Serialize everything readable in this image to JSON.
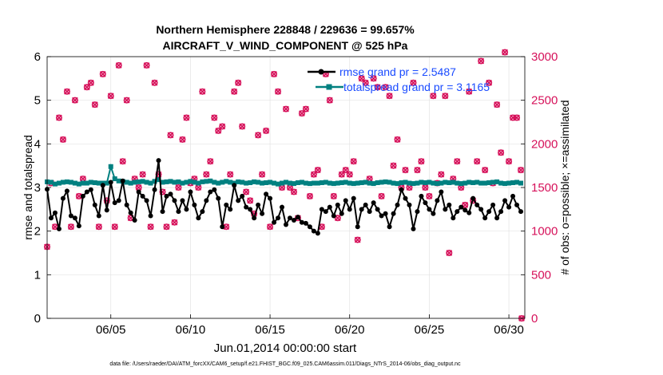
{
  "chart_data": {
    "type": "line",
    "title_line1": "Northern Hemisphere 228848 / 229636 = 99.657%",
    "title_line2": "AIRCRAFT_V_WIND_COMPONENT @ 525 hPa",
    "xlabel": "Jun.01,2014 00:00:00 start",
    "ylabel": "rmse and totalspread",
    "y2label": "# of obs: o=possible; ×=assimilated",
    "footnote": "data file: /Users/raeder/DAI/ATM_forcXX/CAM6_setup/f.e21.FHIST_BGC.f09_025.CAM6assim.011/Diags_NTrS_2014-06/obs_diag_output.nc",
    "xlim": [
      1.0,
      31.0
    ],
    "ylim": [
      0,
      6
    ],
    "y2lim": [
      0,
      3000
    ],
    "xticks": [
      5,
      10,
      15,
      20,
      25,
      30
    ],
    "xtick_labels": [
      "06/05",
      "06/10",
      "06/15",
      "06/20",
      "06/25",
      "06/30"
    ],
    "yticks": [
      0,
      1,
      2,
      3,
      4,
      5,
      6
    ],
    "ytick_labels": [
      "0",
      "1",
      "2",
      "3",
      "4",
      "5",
      "6"
    ],
    "y2ticks": [
      0,
      500,
      1000,
      1500,
      2000,
      2500,
      3000
    ],
    "y2tick_labels": [
      "0",
      "500",
      "1000",
      "1500",
      "2000",
      "2500",
      "3000"
    ],
    "grid": true,
    "legend_position": "top-right",
    "x": [
      1.0,
      1.25,
      1.5,
      1.75,
      2.0,
      2.25,
      2.5,
      2.75,
      3.0,
      3.25,
      3.5,
      3.75,
      4.0,
      4.25,
      4.5,
      4.75,
      5.0,
      5.25,
      5.5,
      5.75,
      6.0,
      6.25,
      6.5,
      6.75,
      7.0,
      7.25,
      7.5,
      7.75,
      8.0,
      8.25,
      8.5,
      8.75,
      9.0,
      9.25,
      9.5,
      9.75,
      10.0,
      10.25,
      10.5,
      10.75,
      11.0,
      11.25,
      11.5,
      11.75,
      12.0,
      12.25,
      12.5,
      12.75,
      13.0,
      13.25,
      13.5,
      13.75,
      14.0,
      14.25,
      14.5,
      14.75,
      15.0,
      15.25,
      15.5,
      15.75,
      16.0,
      16.25,
      16.5,
      16.75,
      17.0,
      17.25,
      17.5,
      17.75,
      18.0,
      18.25,
      18.5,
      18.75,
      19.0,
      19.25,
      19.5,
      19.75,
      20.0,
      20.25,
      20.5,
      20.75,
      21.0,
      21.25,
      21.5,
      21.75,
      22.0,
      22.25,
      22.5,
      22.75,
      23.0,
      23.25,
      23.5,
      23.75,
      24.0,
      24.25,
      24.5,
      24.75,
      25.0,
      25.25,
      25.5,
      25.75,
      26.0,
      26.25,
      26.5,
      26.75,
      27.0,
      27.25,
      27.5,
      27.75,
      28.0,
      28.25,
      28.5,
      28.75,
      29.0,
      29.25,
      29.5,
      29.75,
      30.0,
      30.25,
      30.5,
      30.75
    ],
    "series": [
      {
        "name": "rmse",
        "legend": "rmse grand pr = 2.5487",
        "color": "#000000",
        "axis": "left",
        "values": [
          2.96,
          2.3,
          2.42,
          2.05,
          2.75,
          2.92,
          2.35,
          2.3,
          2.12,
          2.8,
          2.9,
          2.95,
          2.6,
          2.35,
          3.05,
          2.48,
          3.12,
          2.65,
          2.7,
          3.15,
          2.6,
          2.42,
          2.25,
          2.9,
          2.8,
          2.7,
          2.35,
          2.95,
          3.62,
          2.45,
          2.8,
          2.85,
          2.7,
          2.45,
          2.7,
          2.5,
          2.9,
          2.6,
          2.3,
          2.45,
          2.7,
          2.9,
          2.95,
          2.75,
          2.1,
          2.6,
          2.5,
          3.05,
          2.7,
          2.8,
          2.55,
          2.5,
          2.3,
          2.6,
          2.4,
          2.85,
          2.75,
          2.2,
          2.3,
          2.55,
          2.15,
          2.3,
          2.25,
          2.32,
          2.2,
          2.18,
          2.1,
          2.0,
          1.95,
          2.5,
          2.45,
          2.55,
          2.35,
          2.6,
          2.4,
          2.7,
          2.5,
          2.75,
          2.1,
          2.5,
          2.6,
          2.45,
          2.65,
          2.5,
          2.35,
          2.4,
          2.1,
          2.4,
          2.6,
          2.95,
          2.75,
          2.6,
          2.05,
          2.45,
          2.8,
          2.65,
          2.5,
          2.4,
          2.7,
          2.9,
          2.5,
          2.6,
          2.3,
          2.45,
          2.55,
          2.48,
          2.42,
          2.75,
          2.6,
          2.5,
          2.3,
          2.45,
          2.6,
          2.3,
          2.45,
          2.7,
          2.55,
          2.8,
          2.6,
          2.45
        ]
      },
      {
        "name": "totalspread",
        "legend": "totalspread grand pr = 3.1165",
        "color": "#008080",
        "axis": "left",
        "values": [
          3.13,
          3.12,
          3.08,
          3.1,
          3.12,
          3.13,
          3.12,
          3.1,
          3.08,
          3.1,
          3.1,
          3.12,
          3.11,
          3.1,
          3.1,
          3.1,
          3.48,
          3.2,
          3.15,
          3.14,
          3.12,
          3.1,
          3.12,
          3.13,
          3.14,
          3.12,
          3.1,
          3.14,
          3.18,
          3.12,
          3.13,
          3.14,
          3.12,
          3.13,
          3.1,
          3.12,
          3.14,
          3.12,
          3.1,
          3.13,
          3.14,
          3.15,
          3.12,
          3.1,
          3.12,
          3.14,
          3.12,
          3.1,
          3.13,
          3.12,
          3.1,
          3.11,
          3.13,
          3.12,
          3.1,
          3.11,
          3.12,
          3.1,
          3.08,
          3.1,
          3.12,
          3.1,
          3.09,
          3.11,
          3.12,
          3.1,
          3.09,
          3.1,
          3.1,
          3.11,
          3.12,
          3.1,
          3.09,
          3.1,
          3.11,
          3.12,
          3.1,
          3.09,
          3.1,
          3.11,
          3.12,
          3.1,
          3.09,
          3.11,
          3.12,
          3.13,
          3.12,
          3.1,
          3.09,
          3.11,
          3.12,
          3.1,
          3.09,
          3.1,
          3.12,
          3.11,
          3.12,
          3.1,
          3.09,
          3.1,
          3.12,
          3.11,
          3.12,
          3.1,
          3.09,
          3.1,
          3.12,
          3.11,
          3.12,
          3.1,
          3.1,
          3.11,
          3.12,
          3.13,
          3.1,
          3.09,
          3.1,
          3.11,
          3.12,
          3.1
        ]
      },
      {
        "name": "obs_possible",
        "color": "#d6115a",
        "axis": "right",
        "marker": "o",
        "values": [
          820,
          1550,
          1050,
          2300,
          2050,
          2600,
          1050,
          2500,
          1400,
          1600,
          2650,
          2700,
          2450,
          1050,
          2800,
          1350,
          2550,
          1050,
          2900,
          1800,
          2500,
          1150,
          1600,
          1500,
          1650,
          2900,
          1050,
          2700,
          1650,
          1450,
          1050,
          2100,
          1100,
          1500,
          2050,
          2300,
          1550,
          1600,
          1500,
          2600,
          1650,
          1800,
          2300,
          2150,
          2200,
          1050,
          1650,
          2600,
          2700,
          2200,
          1450,
          1350,
          1200,
          2100,
          1650,
          2150,
          1050,
          2800,
          2600,
          1500,
          2400,
          1500,
          1450,
          1150,
          2350,
          2400,
          1400,
          1650,
          1700,
          1050,
          2800,
          2500,
          1400,
          1150,
          1650,
          1700,
          1650,
          1800,
          900,
          2750,
          2700,
          1600,
          2750,
          2650,
          1400,
          2650,
          2550,
          1750,
          2050,
          1500,
          1700,
          1500,
          2700,
          1700,
          1800,
          1500,
          1400,
          2550,
          1550,
          1650,
          2550,
          750,
          1600,
          1800,
          1500,
          1300,
          2600,
          1350,
          1800,
          2950,
          1700,
          2700,
          1550,
          2450,
          1900,
          3050,
          1800,
          2300,
          2300,
          1700
        ]
      },
      {
        "name": "obs_assimilated",
        "color": "#d6115a",
        "axis": "right",
        "marker": "x",
        "values": [
          820,
          1550,
          1050,
          2300,
          2050,
          2600,
          1050,
          2500,
          1400,
          1600,
          2650,
          2700,
          2450,
          1050,
          2800,
          1350,
          2550,
          1050,
          2900,
          1800,
          2500,
          1150,
          1600,
          1500,
          1650,
          2900,
          1050,
          2700,
          1650,
          1450,
          1050,
          2100,
          1100,
          1500,
          2050,
          2300,
          1550,
          1600,
          1500,
          2600,
          1650,
          1800,
          2300,
          2150,
          2200,
          1050,
          1650,
          2600,
          2700,
          2200,
          1450,
          1350,
          1200,
          2100,
          1650,
          2150,
          1050,
          2800,
          2600,
          1500,
          2400,
          1500,
          1450,
          1150,
          2350,
          2400,
          1400,
          1650,
          1700,
          1050,
          2800,
          2500,
          1400,
          1150,
          1650,
          1700,
          1650,
          1800,
          900,
          2750,
          2700,
          1600,
          2750,
          2650,
          1400,
          2650,
          2550,
          1750,
          2050,
          1500,
          1700,
          1500,
          2700,
          1700,
          1800,
          1500,
          1400,
          2550,
          1550,
          1650,
          2550,
          750,
          1600,
          1800,
          1500,
          1300,
          2600,
          1350,
          1800,
          2950,
          1700,
          2700,
          1550,
          2450,
          1900,
          3050,
          1800,
          2300,
          2300,
          1700
        ]
      }
    ],
    "extra_points": [
      {
        "series": "obs_possible",
        "x": 30.8,
        "value": 0
      }
    ]
  }
}
